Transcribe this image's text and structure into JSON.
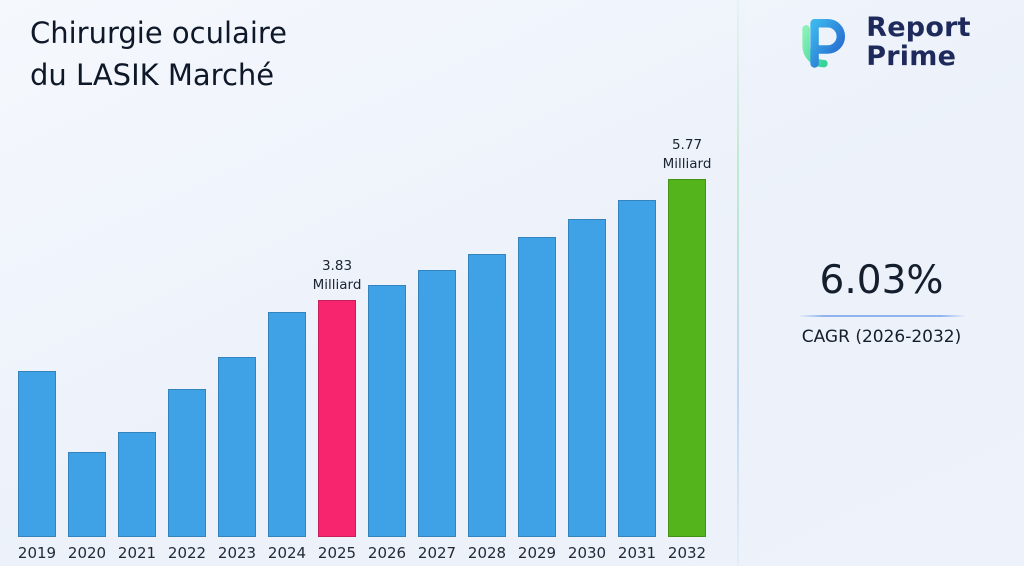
{
  "header": {
    "line1": "Chirurgie oculaire",
    "line2": "du LASIK Marché"
  },
  "logo": {
    "line1": "Report",
    "line2": "Prime"
  },
  "stats": {
    "cagr_value": "6.03%",
    "cagr_label": "CAGR (2026-2032)"
  },
  "chart_data": {
    "type": "bar",
    "title": "Chirurgie oculaire du LASIK Marché",
    "unit": "Milliard",
    "categories": [
      "2019",
      "2020",
      "2021",
      "2022",
      "2023",
      "2024",
      "2025",
      "2026",
      "2027",
      "2028",
      "2029",
      "2030",
      "2031",
      "2032"
    ],
    "values": [
      2.68,
      1.37,
      1.69,
      2.39,
      2.91,
      3.63,
      3.83,
      4.06,
      4.31,
      4.57,
      4.84,
      5.13,
      5.44,
      5.77
    ],
    "ylim": [
      0,
      6.2
    ],
    "grid": false,
    "legend": false,
    "annotations": [
      {
        "category": "2025",
        "value_text": "3.83",
        "unit_text": "Milliard"
      },
      {
        "category": "2032",
        "value_text": "5.77",
        "unit_text": "Milliard"
      }
    ],
    "colors": {
      "default": "#3FA2E6",
      "2025": "#F7256D",
      "2032": "#54B41C"
    }
  }
}
